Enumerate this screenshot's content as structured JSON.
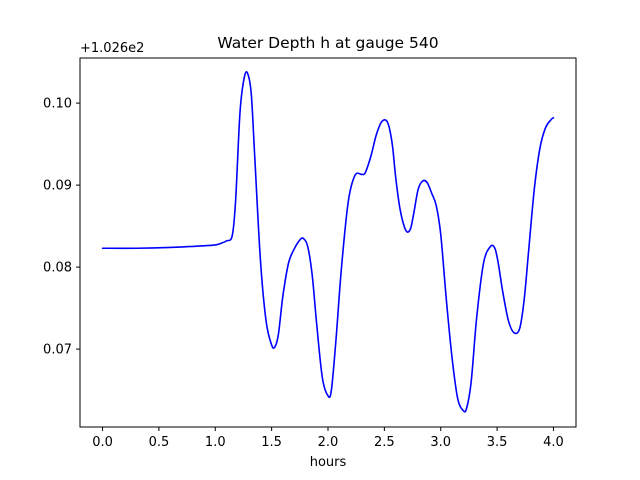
{
  "chart_data": {
    "type": "line",
    "title": "Water Depth h at gauge 540",
    "xlabel": "hours",
    "ylabel": "",
    "offset_text": "+1.026e2",
    "y_offset": 102.6,
    "xlim": [
      -0.2,
      4.2
    ],
    "ylim": [
      0.0605,
      0.1055
    ],
    "x_ticks": [
      0.0,
      0.5,
      1.0,
      1.5,
      2.0,
      2.5,
      3.0,
      3.5,
      4.0
    ],
    "x_tick_labels": [
      "0.0",
      "0.5",
      "1.0",
      "1.5",
      "2.0",
      "2.5",
      "3.0",
      "3.5",
      "4.0"
    ],
    "y_ticks": [
      0.07,
      0.08,
      0.09,
      0.1
    ],
    "y_tick_labels": [
      "0.07",
      "0.08",
      "0.09",
      "0.10"
    ],
    "grid": false,
    "legend": "none",
    "series": [
      {
        "color": "#0000ff",
        "x": [
          0.0,
          0.3,
          0.6,
          0.9,
          1.0,
          1.05,
          1.1,
          1.15,
          1.18,
          1.22,
          1.26,
          1.29,
          1.32,
          1.35,
          1.4,
          1.45,
          1.5,
          1.53,
          1.56,
          1.6,
          1.65,
          1.7,
          1.75,
          1.78,
          1.82,
          1.86,
          1.9,
          1.95,
          2.0,
          2.03,
          2.07,
          2.12,
          2.18,
          2.24,
          2.3,
          2.33,
          2.38,
          2.43,
          2.48,
          2.53,
          2.57,
          2.6,
          2.64,
          2.69,
          2.73,
          2.76,
          2.8,
          2.84,
          2.88,
          2.92,
          2.96,
          3.0,
          3.05,
          3.1,
          3.15,
          3.2,
          3.23,
          3.27,
          3.32,
          3.38,
          3.44,
          3.48,
          3.51,
          3.55,
          3.6,
          3.65,
          3.7,
          3.74,
          3.78,
          3.83,
          3.88,
          3.93,
          3.98,
          4.0
        ],
        "y": [
          0.0823,
          0.0823,
          0.0824,
          0.0826,
          0.0827,
          0.0829,
          0.0832,
          0.0838,
          0.088,
          0.099,
          0.1033,
          0.1035,
          0.101,
          0.0935,
          0.081,
          0.0735,
          0.0705,
          0.0703,
          0.0718,
          0.0765,
          0.0805,
          0.0822,
          0.0833,
          0.0835,
          0.0825,
          0.079,
          0.073,
          0.0665,
          0.0643,
          0.065,
          0.071,
          0.08,
          0.088,
          0.0912,
          0.0913,
          0.0915,
          0.0935,
          0.0962,
          0.0978,
          0.0976,
          0.095,
          0.091,
          0.087,
          0.0845,
          0.0846,
          0.0865,
          0.0895,
          0.0905,
          0.0903,
          0.089,
          0.0875,
          0.084,
          0.076,
          0.069,
          0.064,
          0.0625,
          0.0628,
          0.066,
          0.074,
          0.0805,
          0.0825,
          0.0823,
          0.0805,
          0.077,
          0.0735,
          0.072,
          0.0725,
          0.076,
          0.082,
          0.0895,
          0.0945,
          0.097,
          0.098,
          0.0982
        ]
      }
    ]
  }
}
